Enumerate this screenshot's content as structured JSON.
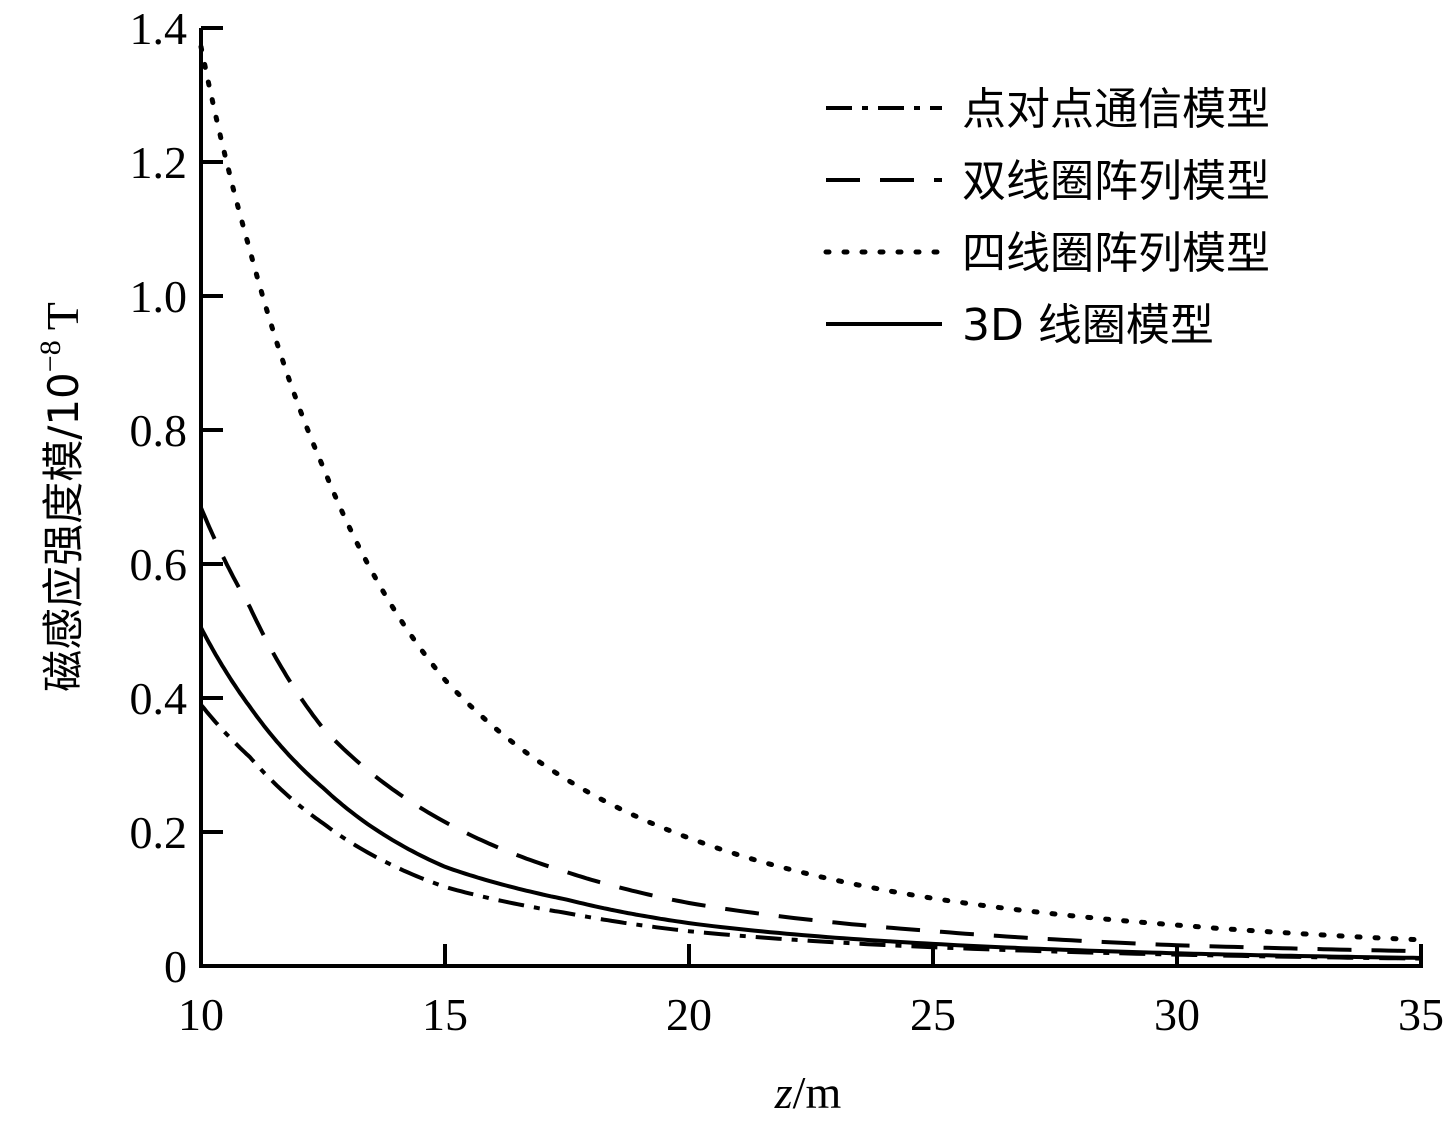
{
  "chart_data": {
    "type": "line",
    "title": "",
    "xlabel": "z/m",
    "xlabel_var": "z",
    "xlabel_unit": "/m",
    "ylabel": "磁感应强度模/10⁻⁸ T",
    "ylabel_main": "磁感应强度模/10",
    "ylabel_exp": "−8",
    "ylabel_unit": "T",
    "xlim": [
      10,
      35
    ],
    "ylim": [
      0,
      1.4
    ],
    "x_ticks": [
      10,
      15,
      20,
      25,
      30,
      35
    ],
    "x_tick_labels": [
      "10",
      "15",
      "20",
      "25",
      "30",
      "35"
    ],
    "y_ticks": [
      0,
      0.2,
      0.4,
      0.6,
      0.8,
      1.0,
      1.2,
      1.4
    ],
    "y_tick_labels": [
      "0",
      "0.2",
      "0.4",
      "0.6",
      "0.8",
      "1.0",
      "1.2",
      "1.4"
    ],
    "grid": false,
    "legend_position": "upper right",
    "x": [
      10,
      11,
      12.5,
      15,
      17.5,
      20,
      25,
      30,
      35
    ],
    "series": [
      {
        "name": "点对点通信模型",
        "style": "dashdot",
        "values": [
          0.39,
          0.312,
          0.213,
          0.118,
          0.079,
          0.052,
          0.028,
          0.017,
          0.011
        ]
      },
      {
        "name": "双线圈阵列模型",
        "style": "dashed",
        "values": [
          0.684,
          0.536,
          0.355,
          0.215,
          0.14,
          0.094,
          0.052,
          0.031,
          0.022
        ]
      },
      {
        "name": "四线圈阵列模型",
        "style": "dotted",
        "values": [
          1.372,
          1.069,
          0.745,
          0.427,
          0.278,
          0.191,
          0.101,
          0.061,
          0.039
        ]
      },
      {
        "name": "3D 线圈模型",
        "style": "solid",
        "values": [
          0.505,
          0.387,
          0.266,
          0.148,
          0.099,
          0.064,
          0.033,
          0.019,
          0.012
        ]
      }
    ]
  }
}
